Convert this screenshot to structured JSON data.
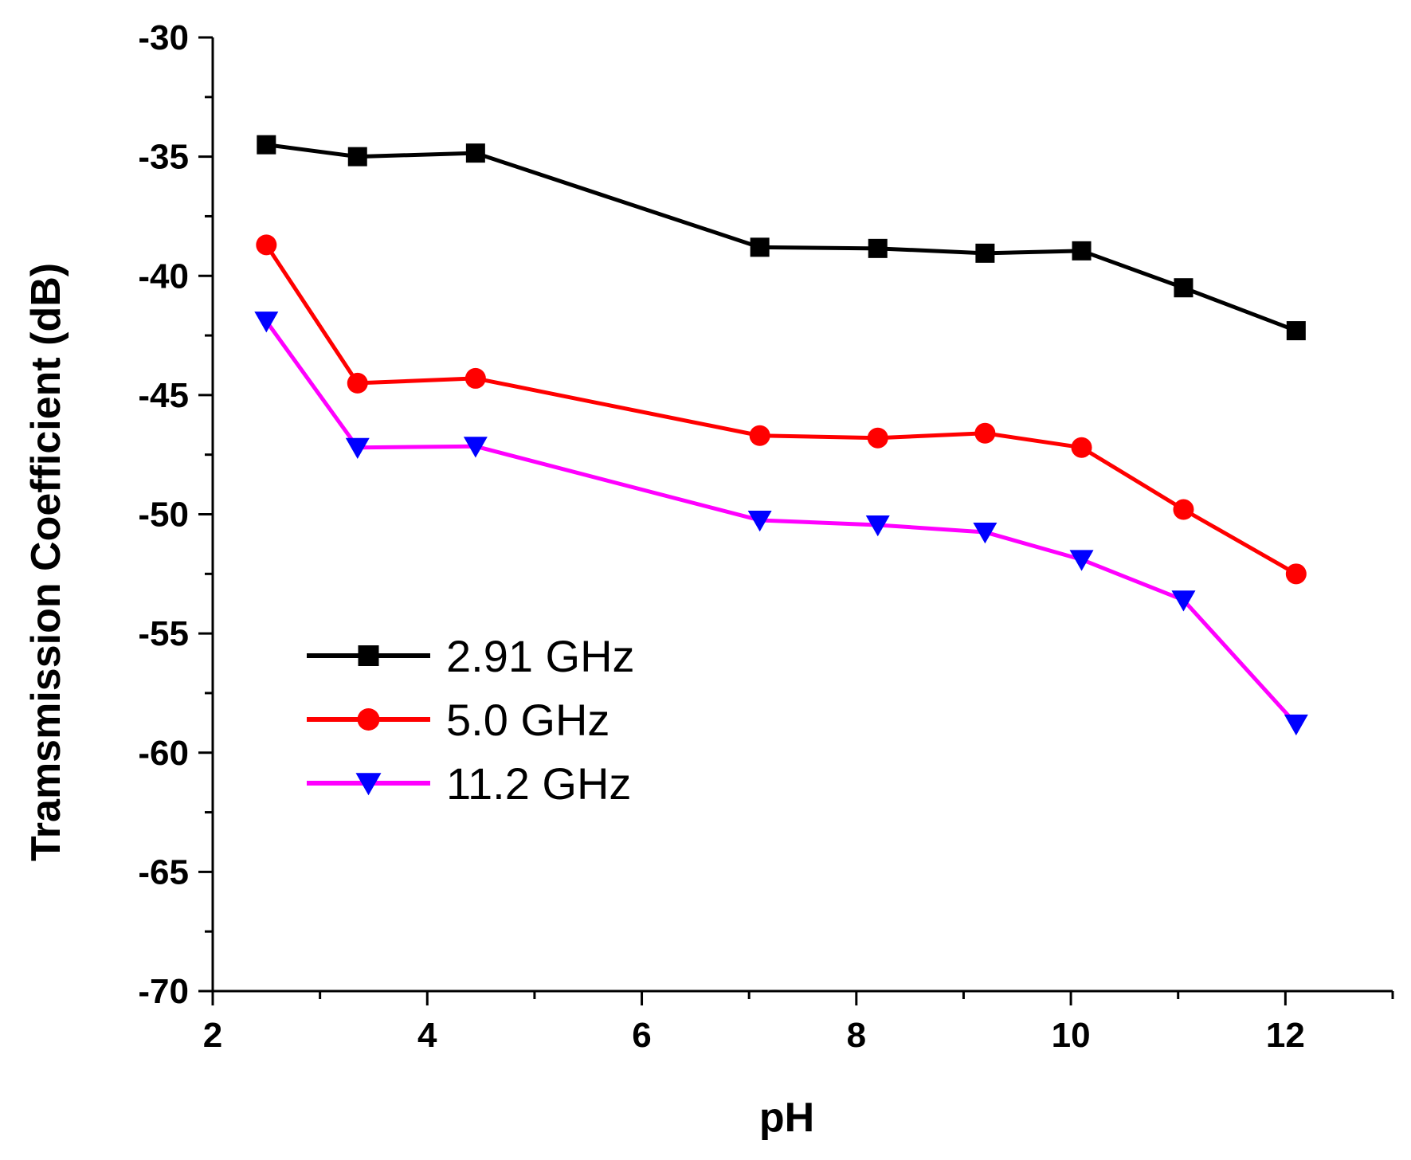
{
  "chart_data": {
    "type": "line",
    "title": "",
    "xlabel": "pH",
    "ylabel": "Tramsmission Coefficient (dB)",
    "xlim": [
      2,
      13
    ],
    "ylim": [
      -70,
      -30
    ],
    "xticks": [
      2,
      4,
      6,
      8,
      10,
      12
    ],
    "yticks": [
      -30,
      -35,
      -40,
      -45,
      -50,
      -55,
      -60,
      -65,
      -70
    ],
    "grid": false,
    "legend_position": "lower-left",
    "x": [
      2.5,
      3.35,
      4.45,
      7.1,
      8.2,
      9.2,
      10.1,
      11.05,
      12.1
    ],
    "series": [
      {
        "name": "2.91 GHz",
        "color": "#000000",
        "marker": "square",
        "values": [
          -34.5,
          -35.0,
          -34.85,
          -38.8,
          -38.85,
          -39.05,
          -38.95,
          -40.5,
          -42.3
        ]
      },
      {
        "name": "5.0 GHz",
        "color": "#ff0000",
        "marker": "circle",
        "values": [
          -38.7,
          -44.5,
          -44.3,
          -46.7,
          -46.8,
          -46.6,
          -47.2,
          -49.8,
          -52.5
        ]
      },
      {
        "name": "11.2 GHz",
        "color": "#ff00ff",
        "marker_color": "#0000ff",
        "marker": "triangle-down",
        "values": [
          -41.9,
          -47.2,
          -47.15,
          -50.25,
          -50.45,
          -50.75,
          -51.9,
          -53.6,
          -58.8
        ]
      }
    ]
  }
}
